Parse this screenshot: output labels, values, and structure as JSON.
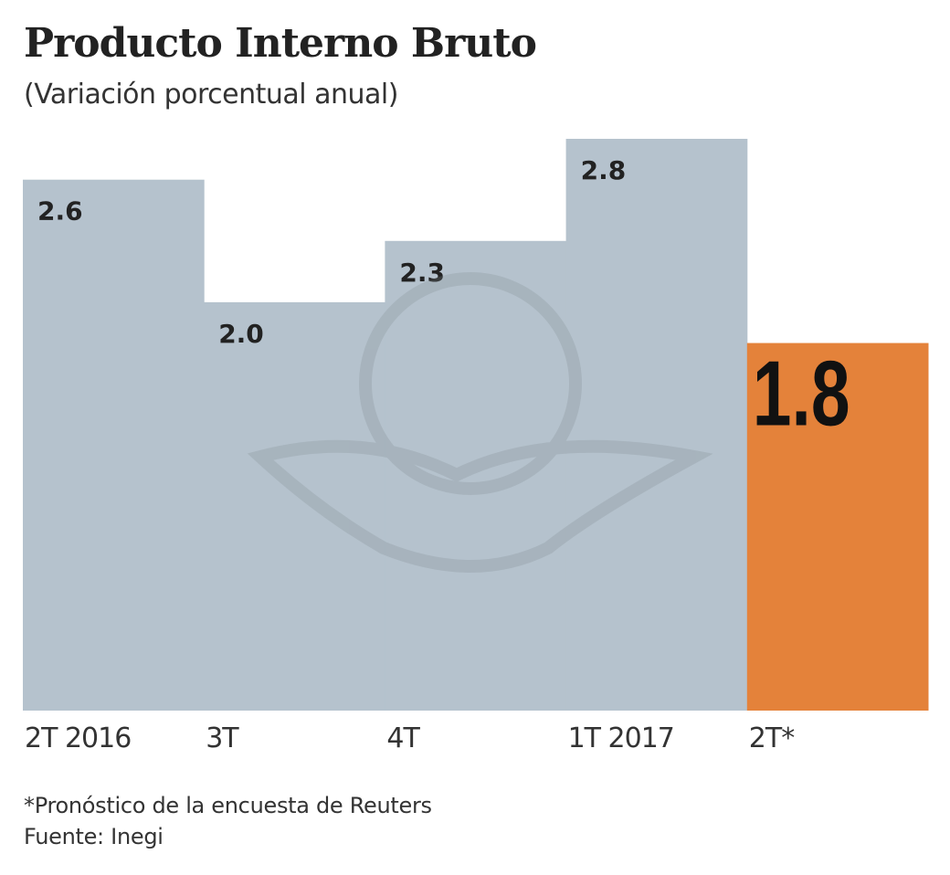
{
  "chart_data": {
    "type": "bar",
    "title": "Producto Interno Bruto",
    "subtitle": "(Variación porcentual anual)",
    "categories": [
      "2T 2016",
      "3T",
      "4T",
      "1T 2017",
      "2T*"
    ],
    "values": [
      2.6,
      2.0,
      2.3,
      2.8,
      1.8
    ],
    "data_labels": [
      "2.6",
      "2.0",
      "2.3",
      "2.8",
      "1.8"
    ],
    "ylim": [
      0,
      2.8
    ],
    "grid": false,
    "colors": {
      "actual": "#b5c2cd",
      "forecast": "#e4823a"
    },
    "highlighted_index": 4
  },
  "footnote": "*Pronóstico de la encuesta de Reuters",
  "source": "Fuente: Inegi",
  "watermark": "eagle-emblem"
}
